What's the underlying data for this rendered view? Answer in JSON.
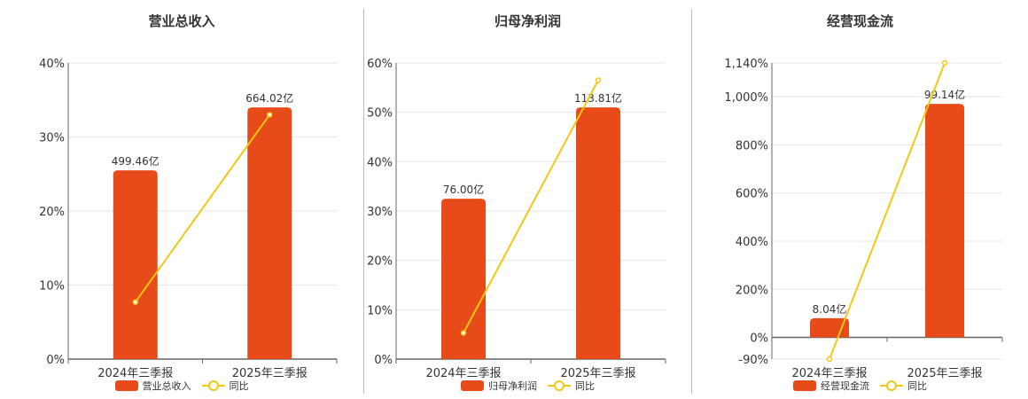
{
  "colors": {
    "bar": "#E84B1A",
    "line": "#F2C811",
    "grid": "#e6e6e6",
    "axis": "#666666"
  },
  "legend": {
    "line_label": "同比"
  },
  "chart_data": [
    {
      "type": "bar",
      "title": "营业总收入",
      "categories": [
        "2024年三季报",
        "2025年三季报"
      ],
      "bar_series": {
        "name": "营业总收入",
        "bar_pct": [
          25.5,
          34.0
        ],
        "labels": [
          "499.46亿",
          "664.02亿"
        ]
      },
      "line_series": {
        "name": "同比",
        "values": [
          7.7,
          33.0
        ]
      },
      "y_ticks": [
        0,
        10,
        20,
        30,
        40
      ],
      "y_tick_labels": [
        "0%",
        "10%",
        "20%",
        "30%",
        "40%"
      ],
      "ylim": [
        0,
        40
      ],
      "grid": true,
      "legend_position": "bottom"
    },
    {
      "type": "bar",
      "title": "归母净利润",
      "categories": [
        "2024年三季报",
        "2025年三季报"
      ],
      "bar_series": {
        "name": "归母净利润",
        "bar_pct": [
          32.5,
          51.0
        ],
        "labels": [
          "76.00亿",
          "113.81亿"
        ]
      },
      "line_series": {
        "name": "同比",
        "values": [
          5.3,
          56.5
        ]
      },
      "y_ticks": [
        0,
        10,
        20,
        30,
        40,
        50,
        60
      ],
      "y_tick_labels": [
        "0%",
        "10%",
        "20%",
        "30%",
        "40%",
        "50%",
        "60%"
      ],
      "ylim": [
        0,
        60
      ],
      "grid": true,
      "legend_position": "bottom"
    },
    {
      "type": "bar",
      "title": "经营现金流",
      "categories": [
        "2024年三季报",
        "2025年三季报"
      ],
      "bar_series": {
        "name": "经营现金流",
        "bar_pct": [
          80,
          970
        ],
        "labels": [
          "8.04亿",
          "99.14亿"
        ]
      },
      "line_series": {
        "name": "同比",
        "values": [
          -90,
          1140
        ]
      },
      "y_ticks": [
        -90,
        0,
        200,
        400,
        600,
        800,
        1000,
        1140
      ],
      "y_tick_labels": [
        "-90%",
        "0%",
        "200%",
        "400%",
        "600%",
        "800%",
        "1,000%",
        "1,140%"
      ],
      "ylim": [
        -90,
        1140
      ],
      "grid": true,
      "legend_position": "bottom"
    }
  ]
}
